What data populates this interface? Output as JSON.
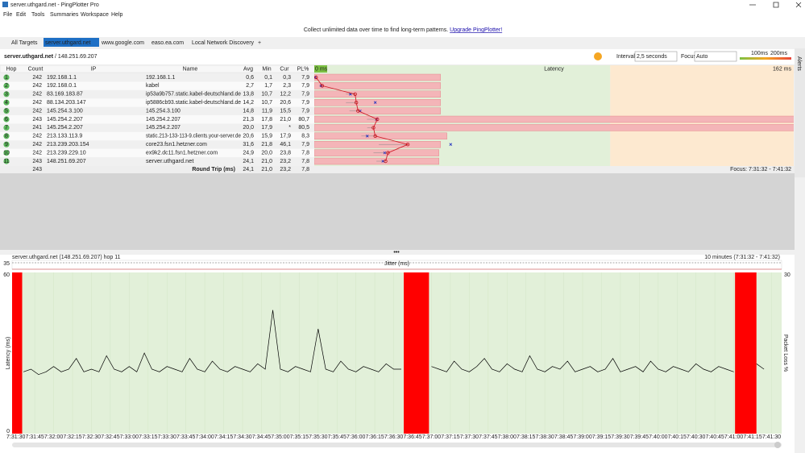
{
  "window": {
    "title": "server.uthgard.net - PingPlotter Pro"
  },
  "menu": [
    "File",
    "Edit",
    "Tools",
    "Summaries",
    "Workspace",
    "Help"
  ],
  "banner": {
    "text": "Collect unlimited data over time to find long-term patterns.",
    "link": "Upgrade PingPlotter!"
  },
  "tabs": [
    "All Targets",
    "server.uthgard.net",
    "www.google.com",
    "easo.ea.com",
    "Local Network Discovery",
    "+"
  ],
  "toolbar": {
    "target": "server.uthgard.net",
    "ip": "/ 148.251.69.207",
    "interval_label": "Interval",
    "interval": "2,5 seconds",
    "focus_label": "Focus",
    "focus": "Auto",
    "alerts": "Alerts"
  },
  "table": {
    "headers": [
      "Hop",
      "Count",
      "IP",
      "Name",
      "Avg",
      "Min",
      "Cur",
      "PL%"
    ],
    "rows": [
      [
        "1",
        "242",
        "192.168.1.1",
        "192.168.1.1"
      ],
      [
        "2",
        "242",
        "192.168.0.1",
        "kabel"
      ],
      [
        "3",
        "242",
        "83.169.183.87",
        "ip53a9b757.static.kabel-deutschland.de"
      ],
      [
        "4",
        "242",
        "88.134.203.147",
        "ip5886cb93.static.kabel-deutschland.de"
      ],
      [
        "5",
        "242",
        "145.254.3.100",
        "145.254.3.100"
      ],
      [
        "6",
        "243",
        "145.254.2.207",
        "145.254.2.207"
      ],
      [
        "7",
        "241",
        "145.254.2.207",
        "145.254.2.207"
      ],
      [
        "8",
        "242",
        "213.133.113.9",
        "static.213-133-113-9.clients.your-server.de"
      ],
      [
        "9",
        "242",
        "213.239.203.154",
        "core23.fsn1.hetzner.com"
      ],
      [
        "10",
        "242",
        "213.239.229.10",
        "ex9k2.dc11.fsn1.hetzner.com"
      ],
      [
        "11",
        "243",
        "148.251.69.207",
        "server.uthgard.net"
      ]
    ],
    "summary": {
      "count": "243",
      "label": "Round Trip (ms)",
      "avg": "24,1",
      "min": "21,0",
      "cur": "23,2",
      "pl": "7,8",
      "focus": "Focus: 7:31:32 - 7:41:32"
    }
  },
  "chart_data": [
    {
      "type": "hop-latency",
      "title": "Latency",
      "xlim": [
        0,
        162
      ],
      "xticks": [
        {
          "value": 0,
          "label": "0 ms"
        },
        {
          "value": 162,
          "label": "162 ms"
        }
      ],
      "thresholds": [
        {
          "value": 100,
          "label": "100ms",
          "color": "#7cc142"
        },
        {
          "value": 200,
          "label": "200ms",
          "color": "#e8453c"
        }
      ],
      "pl_lim": [
        0,
        30
      ],
      "avg": {
        "values": [
          0.6,
          2.7,
          13.8,
          14.2,
          14.8,
          21.3,
          20.0,
          20.6,
          31.6,
          24.9,
          24.1
        ],
        "value_labels": [
          "0,6",
          "2,7",
          "13,8",
          "14,2",
          "14,8",
          "21,3",
          "20,0",
          "20,6",
          "31,6",
          "24,9",
          "24,1"
        ]
      },
      "min": {
        "values": [
          0.1,
          1.7,
          10.7,
          10.7,
          11.9,
          17.8,
          17.9,
          15.9,
          21.8,
          20.0,
          21.0
        ],
        "value_labels": [
          "0,1",
          "1,7",
          "10,7",
          "10,7",
          "11,9",
          "17,8",
          "17,9",
          "15,9",
          "21,8",
          "20,0",
          "21,0"
        ]
      },
      "cur": {
        "values": [
          0.3,
          2.3,
          12.2,
          20.6,
          15.5,
          21.0,
          null,
          17.9,
          46.1,
          23.8,
          23.2
        ],
        "value_labels": [
          "0,3",
          "2,3",
          "12,2",
          "20,6",
          "15,5",
          "21,0",
          "*",
          "17,9",
          "46,1",
          "23,8",
          "23,2"
        ]
      },
      "pl": {
        "values": [
          7.9,
          7.9,
          7.9,
          7.9,
          7.9,
          80.7,
          80.5,
          8.3,
          7.9,
          7.8,
          7.8
        ],
        "value_labels": [
          "7,9",
          "7,9",
          "7,9",
          "7,9",
          "7,9",
          "80,7",
          "80,5",
          "8,3",
          "7,9",
          "7,8",
          "7,8"
        ]
      }
    },
    {
      "type": "line",
      "title": "server.uthgard.net (148.251.69.207) hop 11",
      "subtitle": "10 minutes (7:31:32 - 7:41:32)",
      "ylabel": "Latency (ms)",
      "y2label": "Packet Loss %",
      "jitter": {
        "label": "Jitter (ms)",
        "max": "35"
      },
      "xlim": [
        -3,
        608
      ],
      "ylim": [
        0,
        60
      ],
      "yticks": [
        0,
        60
      ],
      "y2lim": [
        0,
        30
      ],
      "y2ticks": [
        30
      ],
      "xticks": [
        {
          "value": 0,
          "label": "7:31:30"
        },
        {
          "value": 15,
          "label": "7:31:45"
        },
        {
          "value": 30,
          "label": "7:32:00"
        },
        {
          "value": 45,
          "label": "7:32:15"
        },
        {
          "value": 60,
          "label": "7:32:30"
        },
        {
          "value": 75,
          "label": "7:32:45"
        },
        {
          "value": 90,
          "label": "7:33:00"
        },
        {
          "value": 105,
          "label": "7:33:15"
        },
        {
          "value": 120,
          "label": "7:33:30"
        },
        {
          "value": 135,
          "label": "7:33:45"
        },
        {
          "value": 150,
          "label": "7:34:00"
        },
        {
          "value": 165,
          "label": "7:34:15"
        },
        {
          "value": 180,
          "label": "7:34:30"
        },
        {
          "value": 195,
          "label": "7:34:45"
        },
        {
          "value": 210,
          "label": "7:35:00"
        },
        {
          "value": 225,
          "label": "7:35:15"
        },
        {
          "value": 240,
          "label": "7:35:30"
        },
        {
          "value": 255,
          "label": "7:35:45"
        },
        {
          "value": 270,
          "label": "7:36:00"
        },
        {
          "value": 285,
          "label": "7:36:15"
        },
        {
          "value": 300,
          "label": "7:36:30"
        },
        {
          "value": 315,
          "label": "7:36:45"
        },
        {
          "value": 330,
          "label": "7:37:00"
        },
        {
          "value": 345,
          "label": "7:37:15"
        },
        {
          "value": 360,
          "label": "7:37:30"
        },
        {
          "value": 375,
          "label": "7:37:45"
        },
        {
          "value": 390,
          "label": "7:38:00"
        },
        {
          "value": 405,
          "label": "7:38:15"
        },
        {
          "value": 420,
          "label": "7:38:30"
        },
        {
          "value": 435,
          "label": "7:38:45"
        },
        {
          "value": 450,
          "label": "7:39:00"
        },
        {
          "value": 465,
          "label": "7:39:15"
        },
        {
          "value": 480,
          "label": "7:39:30"
        },
        {
          "value": 495,
          "label": "7:39:45"
        },
        {
          "value": 510,
          "label": "7:40:00"
        },
        {
          "value": 525,
          "label": "7:40:15"
        },
        {
          "value": 540,
          "label": "7:40:30"
        },
        {
          "value": 555,
          "label": "7:40:45"
        },
        {
          "value": 570,
          "label": "7:41:00"
        },
        {
          "value": 585,
          "label": "7:41:15"
        },
        {
          "value": 600,
          "label": "7:41:30"
        }
      ],
      "series": [
        {
          "color": "#000000",
          "x": [
            0,
            6,
            12,
            18,
            24,
            30,
            36,
            42,
            48,
            54,
            60,
            66,
            72,
            78,
            84,
            90,
            96,
            102,
            108,
            114,
            120,
            126,
            132,
            138,
            144,
            150,
            156,
            162,
            168,
            174,
            180,
            186,
            192,
            198,
            204,
            210,
            216,
            222,
            228,
            234,
            240,
            246,
            252,
            258,
            264,
            270,
            276,
            282,
            288,
            294,
            300,
            306,
            312,
            318,
            324,
            330,
            336,
            342,
            348,
            354,
            360,
            366,
            372,
            378,
            384,
            390,
            396,
            402,
            408,
            414,
            420,
            426,
            432,
            438,
            444,
            450,
            456,
            462,
            468,
            474,
            480,
            486,
            492,
            498,
            504,
            510,
            516,
            522,
            528,
            534,
            540,
            546,
            552,
            558,
            564,
            570,
            576,
            582,
            588,
            594
          ],
          "values": [
            null,
            23,
            24,
            22,
            23,
            25,
            23,
            24,
            28,
            23,
            24,
            23,
            29,
            24,
            23,
            25,
            23,
            30,
            24,
            23,
            25,
            24,
            23,
            28,
            24,
            23,
            27,
            24,
            23,
            25,
            24,
            23,
            26,
            24,
            46,
            24,
            23,
            25,
            24,
            23,
            39,
            24,
            23,
            27,
            24,
            23,
            25,
            24,
            23,
            26,
            24,
            24,
            null,
            null,
            null,
            25,
            24,
            23,
            27,
            24,
            23,
            25,
            28,
            24,
            23,
            26,
            24,
            23,
            29,
            24,
            23,
            25,
            24,
            27,
            23,
            24,
            25,
            23,
            24,
            28,
            23,
            24,
            25,
            23,
            27,
            24,
            23,
            25,
            24,
            23,
            26,
            24,
            23,
            25,
            24,
            23,
            null,
            null,
            26,
            24
          ]
        },
        {
          "axis": "y2",
          "color": "#ff0000",
          "x": [
            [
              -3,
              5
            ],
            [
              308,
              328
            ],
            [
              571,
              588
            ]
          ],
          "values": [
            100,
            100,
            100
          ]
        }
      ]
    }
  ]
}
